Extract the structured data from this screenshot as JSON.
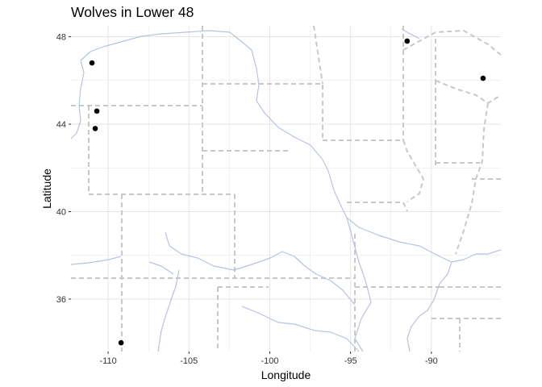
{
  "chart_data": {
    "type": "scatter",
    "title": "Wolves in Lower 48",
    "xlabel": "Longitude",
    "ylabel": "Latitude",
    "xlim": [
      -112.3,
      -85.7
    ],
    "ylim": [
      33.6,
      48.5
    ],
    "x_ticks": [
      -110,
      -105,
      -100,
      -95,
      -90
    ],
    "x_tick_labels": [
      "-110",
      "-105",
      "-100",
      "-95",
      "-90"
    ],
    "y_ticks": [
      36,
      40,
      44,
      48
    ],
    "y_tick_labels": [
      "36",
      "40",
      "44",
      "48"
    ],
    "grid": true,
    "background_layers": [
      "state-borders-dashed",
      "rivers"
    ],
    "colors": {
      "points": "#000000",
      "grid": "#e5e5e5",
      "borders": "#c8c8c8",
      "rivers": "#b7c4de"
    },
    "points": [
      {
        "x": -111.0,
        "y": 46.8
      },
      {
        "x": -110.7,
        "y": 44.6
      },
      {
        "x": -110.8,
        "y": 43.8
      },
      {
        "x": -109.2,
        "y": 34.0
      },
      {
        "x": -91.5,
        "y": 47.8
      },
      {
        "x": -86.8,
        "y": 46.1
      }
    ]
  }
}
